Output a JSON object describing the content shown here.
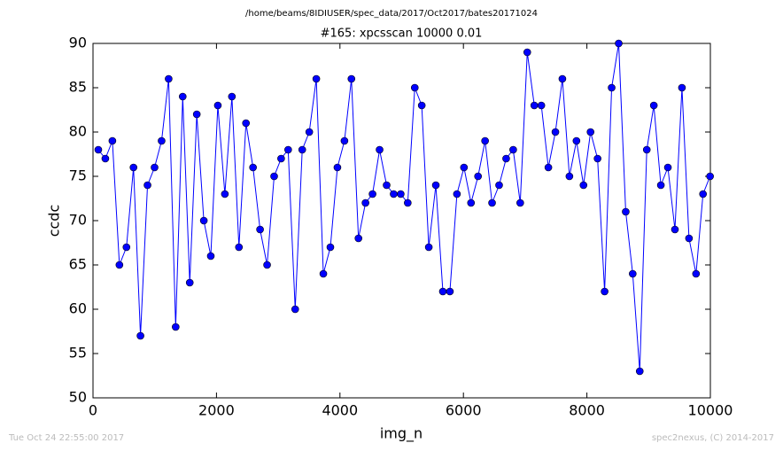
{
  "chart_data": {
    "type": "line",
    "title": "/home/beams/8IDIUSER/spec_data/2017/Oct2017/bates20171024",
    "subtitle": "#165: xpcsscan 10000 0.01",
    "x_label": "img_n",
    "y_label": "ccdc",
    "footer": {
      "timestamp": "Tue Oct 24 22:55:00 2017",
      "credit": "spec2nexus, (C) 2014-2017"
    },
    "x": [
      86,
      200,
      314,
      428,
      542,
      656,
      769,
      883,
      997,
      1111,
      1225,
      1339,
      1453,
      1567,
      1681,
      1795,
      1908,
      2022,
      2136,
      2250,
      2364,
      2478,
      2592,
      2706,
      2820,
      2934,
      3047,
      3161,
      3275,
      3389,
      3503,
      3617,
      3731,
      3845,
      3959,
      4073,
      4186,
      4300,
      4414,
      4528,
      4642,
      4756,
      4870,
      4984,
      5098,
      5212,
      5325,
      5439,
      5553,
      5667,
      5781,
      5895,
      6009,
      6123,
      6237,
      6351,
      6464,
      6578,
      6692,
      6806,
      6920,
      7034,
      7148,
      7262,
      7376,
      7490,
      7603,
      7717,
      7831,
      7945,
      8059,
      8173,
      8287,
      8401,
      8515,
      8629,
      8742,
      8856,
      8970,
      9084,
      9198,
      9312,
      9426,
      9540,
      9654,
      9768,
      9881,
      9995
    ],
    "series": [
      {
        "name": "ccdc",
        "color": "#0000ff",
        "marker_edge": "#000000",
        "values": [
          78,
          77,
          79,
          65,
          67,
          76,
          57,
          74,
          76,
          79,
          86,
          58,
          84,
          63,
          82,
          70,
          66,
          83,
          73,
          84,
          67,
          81,
          76,
          69,
          65,
          75,
          77,
          78,
          60,
          78,
          80,
          86,
          64,
          67,
          76,
          79,
          86,
          68,
          72,
          73,
          78,
          74,
          73,
          73,
          72,
          85,
          83,
          67,
          74,
          62,
          62,
          73,
          76,
          72,
          75,
          79,
          72,
          74,
          77,
          78,
          72,
          89,
          83,
          83,
          76,
          80,
          86,
          75,
          79,
          74,
          80,
          77,
          62,
          85,
          90,
          71,
          64,
          53,
          78,
          83,
          74,
          76,
          69,
          85,
          68,
          64,
          73,
          75
        ]
      }
    ],
    "xlim": [
      0,
      10000
    ],
    "xticks": [
      0,
      2000,
      4000,
      6000,
      8000,
      10000
    ],
    "ylim": [
      50,
      90
    ],
    "yticks": [
      50,
      55,
      60,
      65,
      70,
      75,
      80,
      85,
      90
    ],
    "grid": false,
    "legend": false
  }
}
